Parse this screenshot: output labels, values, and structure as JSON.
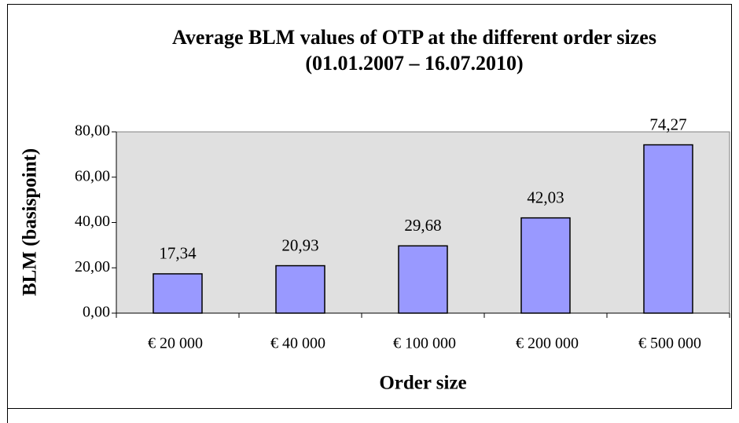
{
  "chart_data": {
    "type": "bar",
    "title": "Average BLM values of OTP at the different order sizes",
    "subtitle": "(01.01.2007 – 16.07.2010)",
    "x_label": "Order size",
    "y_label": "BLM (basispoint)",
    "categories": [
      "€ 20 000",
      "€ 40 000",
      "€ 100 000",
      "€ 200 000",
      "€ 500 000"
    ],
    "values": [
      17.34,
      20.93,
      29.68,
      42.03,
      74.27
    ],
    "value_labels": [
      "17,34",
      "20,93",
      "29,68",
      "42,03",
      "74,27"
    ],
    "color": "#9999ff",
    "ylim": [
      0,
      80
    ],
    "yticks": [
      {
        "value": 0,
        "label": "0,00"
      },
      {
        "value": 20,
        "label": "20,00"
      },
      {
        "value": 40,
        "label": "40,00"
      },
      {
        "value": 60,
        "label": "60,00"
      },
      {
        "value": 80,
        "label": "80,00"
      }
    ],
    "grid": false
  }
}
